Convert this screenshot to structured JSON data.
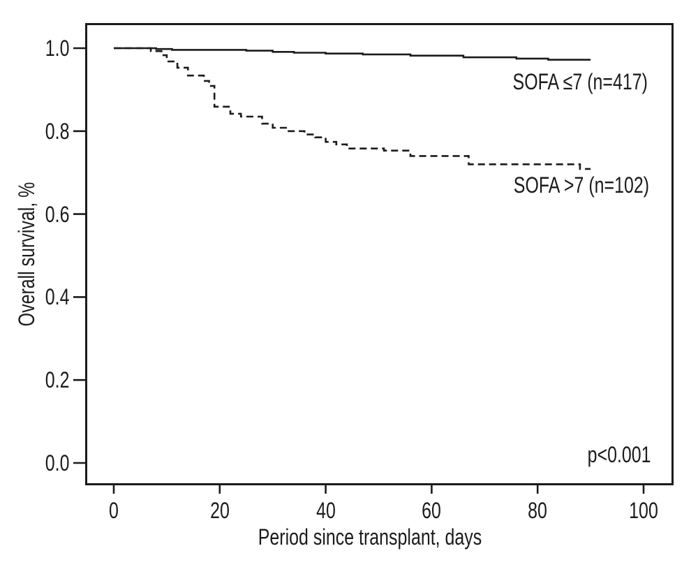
{
  "figure": {
    "background": "#ffffff",
    "ink_color": "#1b1b1b"
  },
  "chart_data": {
    "type": "line",
    "subtype": "kaplan-meier-step",
    "title": "",
    "xlabel": "Period since transplant, days",
    "ylabel": "Overall survival, %",
    "xticks": [
      "0",
      "20",
      "40",
      "60",
      "80",
      "100"
    ],
    "yticks": [
      "1.0",
      "0.8",
      "0.6",
      "0.4",
      "0.2",
      "0.0"
    ],
    "xlim": [
      -5.5,
      105.5
    ],
    "ylim": [
      -0.055,
      1.06
    ],
    "grid": false,
    "legend_position": "inline-right-of-curves",
    "annotations": {
      "p_value": "p<0.001"
    },
    "series": [
      {
        "name": "SOFA >7 (n=102)",
        "line_style": "dashed",
        "color": "#1b1b1b",
        "end_day": 90,
        "steps": [
          [
            0,
            1.0
          ],
          [
            7,
            0.993
          ],
          [
            9,
            0.983
          ],
          [
            10,
            0.968
          ],
          [
            12,
            0.953
          ],
          [
            14,
            0.934
          ],
          [
            17,
            0.921
          ],
          [
            18,
            0.909
          ],
          [
            19,
            0.859
          ],
          [
            22,
            0.842
          ],
          [
            24,
            0.835
          ],
          [
            28,
            0.818
          ],
          [
            30,
            0.808
          ],
          [
            33,
            0.8
          ],
          [
            36,
            0.792
          ],
          [
            38,
            0.785
          ],
          [
            40,
            0.774
          ],
          [
            42,
            0.768
          ],
          [
            44,
            0.758
          ],
          [
            51,
            0.753
          ],
          [
            56,
            0.74
          ],
          [
            67,
            0.72
          ],
          [
            88,
            0.709
          ]
        ]
      },
      {
        "name": "SOFA ≤7 (n=417)",
        "line_style": "solid",
        "color": "#1b1b1b",
        "end_day": 90,
        "steps": [
          [
            0,
            1.0
          ],
          [
            8,
            0.998
          ],
          [
            11,
            0.996
          ],
          [
            25,
            0.994
          ],
          [
            30,
            0.991
          ],
          [
            34,
            0.989
          ],
          [
            40,
            0.987
          ],
          [
            47,
            0.985
          ],
          [
            56,
            0.982
          ],
          [
            66,
            0.978
          ],
          [
            76,
            0.975
          ],
          [
            82,
            0.972
          ]
        ]
      }
    ]
  }
}
